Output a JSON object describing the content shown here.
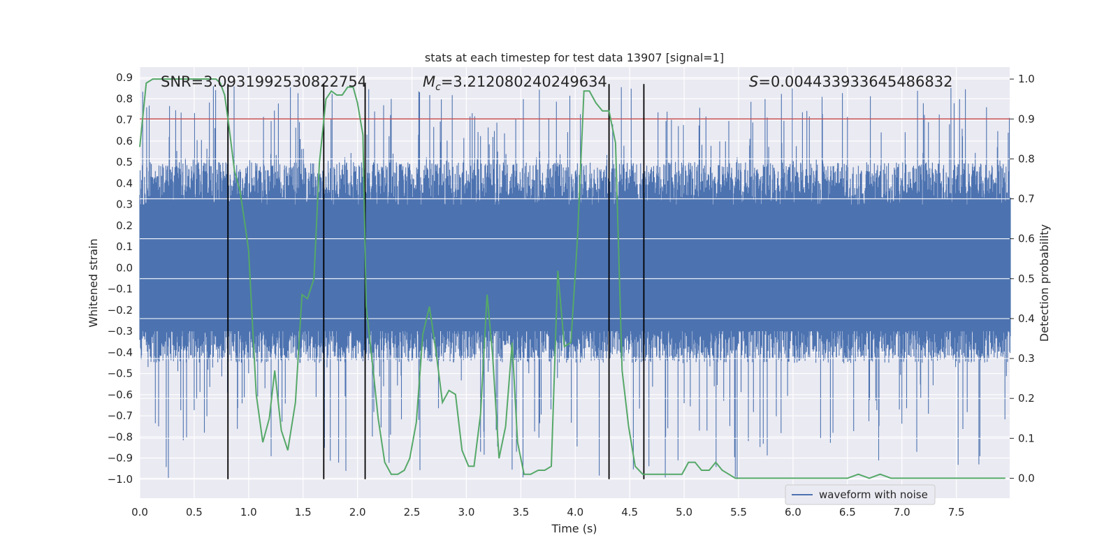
{
  "chart_data": {
    "type": "line",
    "title": "stats at each timestep for test data 13907 [signal=1]",
    "xlabel": "Time (s)",
    "ylabel_left": "Whitened strain",
    "ylabel_right": "Detection probability",
    "xlim": [
      0,
      7.99
    ],
    "ylim_left": [
      -1.09,
      0.95
    ],
    "ylim_right": [
      -0.05,
      1.03
    ],
    "x_ticks": [
      0.0,
      0.5,
      1.0,
      1.5,
      2.0,
      2.5,
      3.0,
      3.5,
      4.0,
      4.5,
      5.0,
      5.5,
      6.0,
      6.5,
      7.0,
      7.5
    ],
    "x_tick_labels": [
      "0.0",
      "0.5",
      "1.0",
      "1.5",
      "2.0",
      "2.5",
      "3.0",
      "3.5",
      "4.0",
      "4.5",
      "5.0",
      "5.5",
      "6.0",
      "6.5",
      "7.0",
      "7.5"
    ],
    "y_left_ticks": [
      0.9,
      0.8,
      0.7,
      0.6,
      0.5,
      0.4,
      0.3,
      0.2,
      0.1,
      0.0,
      -0.1,
      -0.2,
      -0.3,
      -0.4,
      -0.5,
      -0.6,
      -0.7,
      -0.8,
      -0.9,
      -1.0
    ],
    "y_left_tick_labels": [
      "0.9",
      "0.8",
      "0.7",
      "0.6",
      "0.5",
      "0.4",
      "0.3",
      "0.2",
      "0.1",
      "0.0",
      "−0.1",
      "−0.2",
      "−0.3",
      "−0.4",
      "−0.5",
      "−0.6",
      "−0.7",
      "−0.8",
      "−0.9",
      "−1.0"
    ],
    "y_right_ticks": [
      1.0,
      0.9,
      0.8,
      0.7,
      0.6,
      0.5,
      0.4,
      0.3,
      0.2,
      0.1,
      0.0
    ],
    "y_right_tick_labels": [
      "1.0",
      "0.9",
      "0.8",
      "0.7",
      "0.6",
      "0.5",
      "0.4",
      "0.3",
      "0.2",
      "0.1",
      "0.0"
    ],
    "grid": true,
    "legend": {
      "position": "lower-right",
      "entries": [
        "waveform with noise"
      ]
    },
    "annotations": {
      "snr": "SNR=3.0931992530822754",
      "mc_symbol": "M",
      "mc_sub": "c",
      "mc_value": "=3.212080240249634",
      "s_symbol": "S",
      "s_value": "=0.004433933645486832"
    },
    "threshold": {
      "axis": "right",
      "value": 0.9,
      "color": "#c44e52"
    },
    "vertical_markers": {
      "x": [
        0.81,
        1.69,
        2.07,
        4.31,
        4.63
      ],
      "y_range": [
        -1.0,
        0.87
      ],
      "color": "#000000"
    },
    "series": [
      {
        "name": "waveform with noise",
        "axis": "left",
        "color": "#4c72b0",
        "description_style": "dense noisy strain, amplitude envelope",
        "envelope": {
          "x": [
            0.0,
            8.0
          ],
          "typical_upper": 0.5,
          "typical_lower": -0.45,
          "peak_upper": 0.86,
          "peak_lower": -1.0
        }
      },
      {
        "axis": "right",
        "color": "#55a868",
        "x": [
          0.0,
          0.06,
          0.12,
          0.2,
          0.3,
          0.4,
          0.5,
          0.6,
          0.7,
          0.74,
          0.78,
          0.82,
          0.87,
          0.92,
          0.97,
          1.0,
          1.07,
          1.13,
          1.19,
          1.24,
          1.3,
          1.36,
          1.43,
          1.49,
          1.54,
          1.6,
          1.65,
          1.71,
          1.76,
          1.81,
          1.86,
          1.91,
          1.96,
          2.0,
          2.05,
          2.08,
          2.14,
          2.19,
          2.25,
          2.31,
          2.37,
          2.43,
          2.48,
          2.54,
          2.6,
          2.66,
          2.72,
          2.78,
          2.84,
          2.9,
          2.96,
          3.02,
          3.07,
          3.13,
          3.19,
          3.24,
          3.3,
          3.36,
          3.42,
          3.47,
          3.53,
          3.59,
          3.66,
          3.72,
          3.78,
          3.84,
          3.9,
          3.96,
          4.02,
          4.08,
          4.13,
          4.19,
          4.25,
          4.31,
          4.37,
          4.43,
          4.49,
          4.55,
          4.62,
          4.68,
          4.74,
          4.8,
          4.86,
          4.92,
          4.98,
          5.04,
          5.1,
          5.16,
          5.23,
          5.29,
          5.35,
          5.41,
          5.47,
          5.53,
          5.6,
          5.66,
          5.72,
          5.8,
          6.0,
          6.2,
          6.3,
          6.5,
          6.6,
          6.7,
          6.8,
          6.9,
          7.0,
          7.2,
          7.5,
          7.7,
          7.95
        ],
        "y": [
          0.83,
          0.99,
          1.0,
          1.0,
          1.0,
          1.0,
          1.0,
          1.0,
          1.0,
          0.99,
          0.96,
          0.88,
          0.77,
          0.72,
          0.63,
          0.57,
          0.21,
          0.09,
          0.15,
          0.27,
          0.12,
          0.07,
          0.19,
          0.46,
          0.45,
          0.5,
          0.79,
          0.95,
          0.97,
          0.96,
          0.96,
          0.98,
          0.98,
          0.94,
          0.86,
          0.43,
          0.28,
          0.15,
          0.04,
          0.01,
          0.01,
          0.02,
          0.05,
          0.14,
          0.36,
          0.43,
          0.32,
          0.19,
          0.22,
          0.21,
          0.07,
          0.03,
          0.03,
          0.16,
          0.46,
          0.31,
          0.05,
          0.13,
          0.34,
          0.09,
          0.01,
          0.01,
          0.02,
          0.02,
          0.03,
          0.52,
          0.33,
          0.34,
          0.6,
          0.97,
          0.97,
          0.94,
          0.92,
          0.92,
          0.84,
          0.27,
          0.13,
          0.03,
          0.01,
          0.01,
          0.01,
          0.01,
          0.01,
          0.01,
          0.01,
          0.04,
          0.04,
          0.02,
          0.02,
          0.04,
          0.02,
          0.01,
          0.0,
          0.0,
          0.0,
          0.0,
          0.0,
          0.0,
          0.0,
          0.0,
          0.0,
          0.0,
          0.01,
          0.0,
          0.01,
          0.0,
          0.0,
          0.0,
          0.0,
          0.0,
          0.0
        ]
      }
    ]
  }
}
